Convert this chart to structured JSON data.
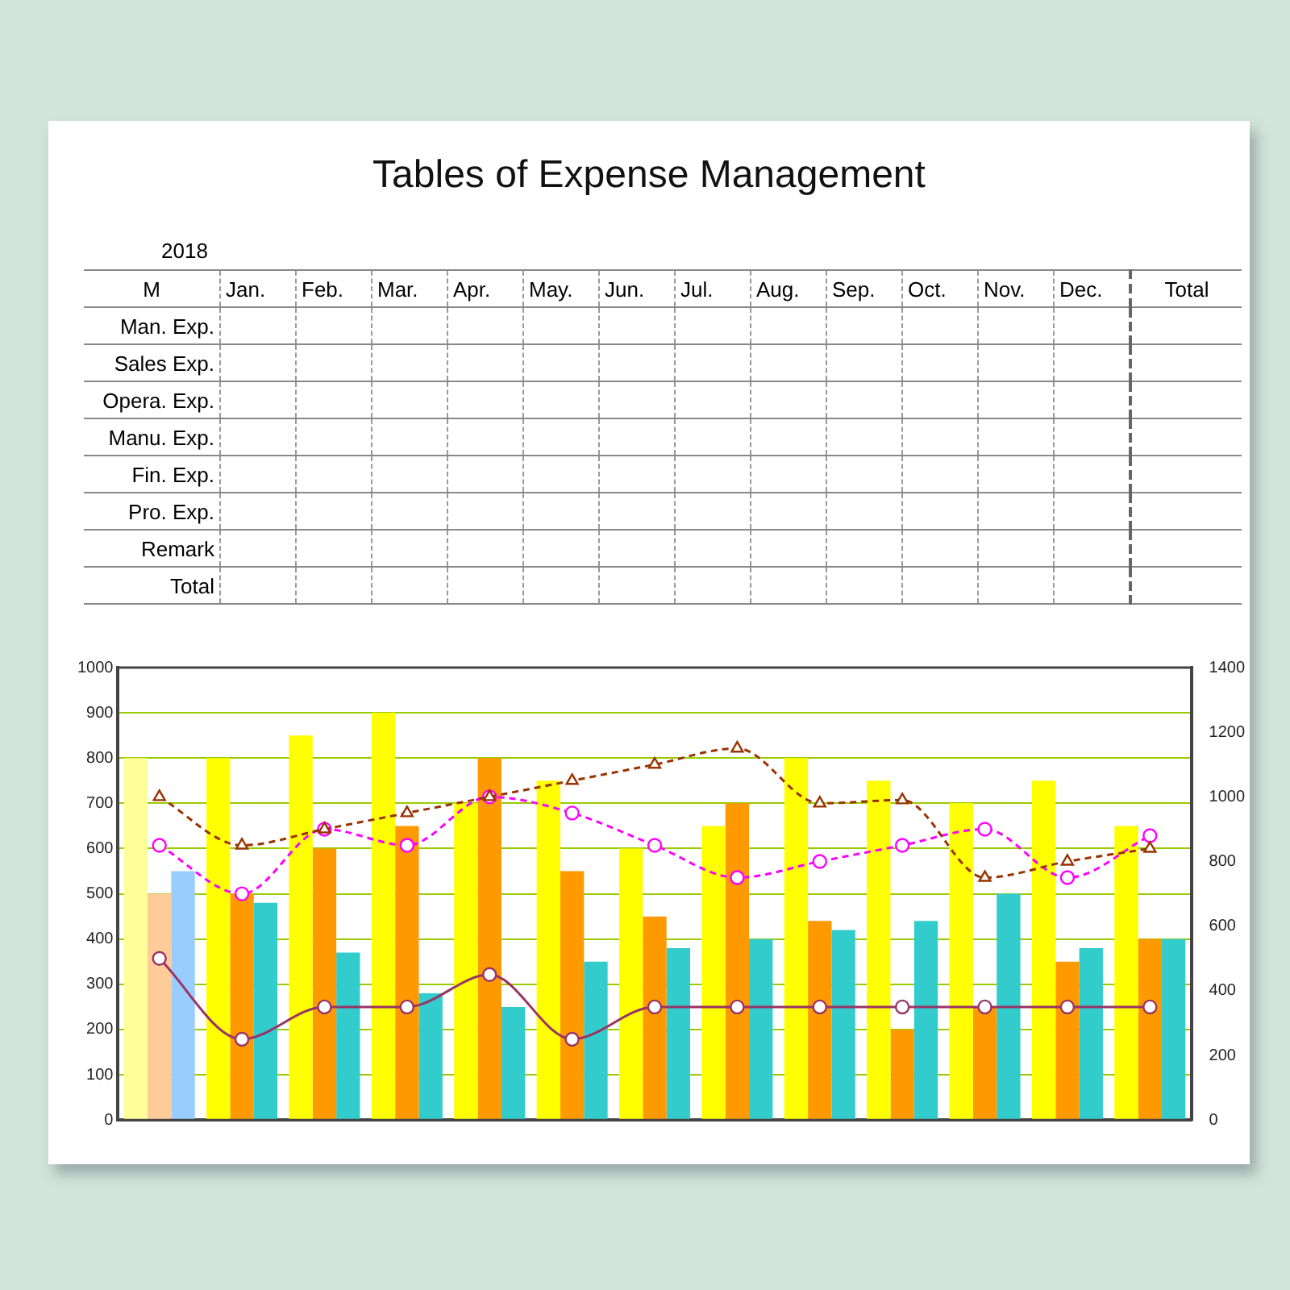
{
  "chart_data": [
    {
      "type": "other",
      "title": "Tables of Expense Management",
      "annotations": [
        "2018",
        "M"
      ],
      "categories": [
        "Jan.",
        "Feb.",
        "Mar.",
        "Apr.",
        "May.",
        "Jun.",
        "Jul.",
        "Aug.",
        "Sep.",
        "Oct.",
        "Nov.",
        "Dec.",
        "Total"
      ],
      "y_categories": [
        "Man. Exp.",
        "Sales Exp.",
        "Opera. Exp.",
        "Manu. Exp.",
        "Fin. Exp.",
        "Pro. Exp.",
        "Remark",
        "Total"
      ]
    },
    {
      "type": "bar",
      "categories": [
        null,
        null,
        null,
        null,
        null,
        null,
        null,
        null,
        null,
        null,
        null,
        null,
        null
      ],
      "series": [
        {
          "type": "bar",
          "colors": [
            "#ffff99",
            "#ffff00",
            "#ffff00",
            "#ffff00",
            "#ffff00",
            "#ffff00",
            "#ffff00",
            "#ffff00",
            "#ffff00",
            "#ffff00",
            "#ffff00",
            "#ffff00",
            "#ffff00"
          ],
          "values": [
            800,
            800,
            850,
            900,
            700,
            750,
            600,
            650,
            800,
            750,
            700,
            750,
            650
          ]
        },
        {
          "type": "bar",
          "colors": [
            "#ffcc99",
            "#ff9900",
            "#ff9900",
            "#ff9900",
            "#ff9900",
            "#ff9900",
            "#ff9900",
            "#ff9900",
            "#ff9900",
            "#ff9900",
            "#ff9900",
            "#ff9900",
            "#ff9900"
          ],
          "values": [
            500,
            500,
            600,
            650,
            800,
            550,
            450,
            700,
            440,
            200,
            250,
            350,
            400
          ]
        },
        {
          "type": "bar",
          "colors": [
            "#99ccff",
            "#33cccc",
            "#33cccc",
            "#33cccc",
            "#33cccc",
            "#33cccc",
            "#33cccc",
            "#33cccc",
            "#33cccc",
            "#33cccc",
            "#33cccc",
            "#33cccc",
            "#33cccc"
          ],
          "values": [
            550,
            480,
            370,
            280,
            250,
            350,
            380,
            400,
            420,
            440,
            500,
            380,
            400
          ]
        },
        {
          "type": "line",
          "axis": "y2",
          "color": "#993300",
          "marker": "triangle",
          "line_style": "dashed",
          "values": [
            1000,
            850,
            900,
            950,
            1000,
            1050,
            1100,
            1150,
            980,
            990,
            750,
            800,
            840
          ]
        },
        {
          "type": "line",
          "axis": "y2",
          "color": "#ff00ff",
          "marker": "circle",
          "line_style": "dashed",
          "values": [
            850,
            700,
            900,
            850,
            1000,
            950,
            850,
            750,
            800,
            850,
            900,
            750,
            880
          ]
        },
        {
          "type": "line",
          "axis": "y2",
          "color": "#993366",
          "marker": "circle",
          "line_style": "solid",
          "values": [
            500,
            250,
            350,
            350,
            450,
            250,
            350,
            350,
            350,
            350,
            350,
            350,
            350
          ]
        }
      ],
      "ylim": [
        0,
        1000
      ],
      "yticks": [
        0,
        100,
        200,
        300,
        400,
        500,
        600,
        700,
        800,
        900,
        1000
      ],
      "y2lim": [
        0,
        1400
      ],
      "y2ticks": [
        0,
        200,
        400,
        600,
        800,
        1000,
        1200,
        1400
      ],
      "grid": "y",
      "legend": false
    }
  ]
}
